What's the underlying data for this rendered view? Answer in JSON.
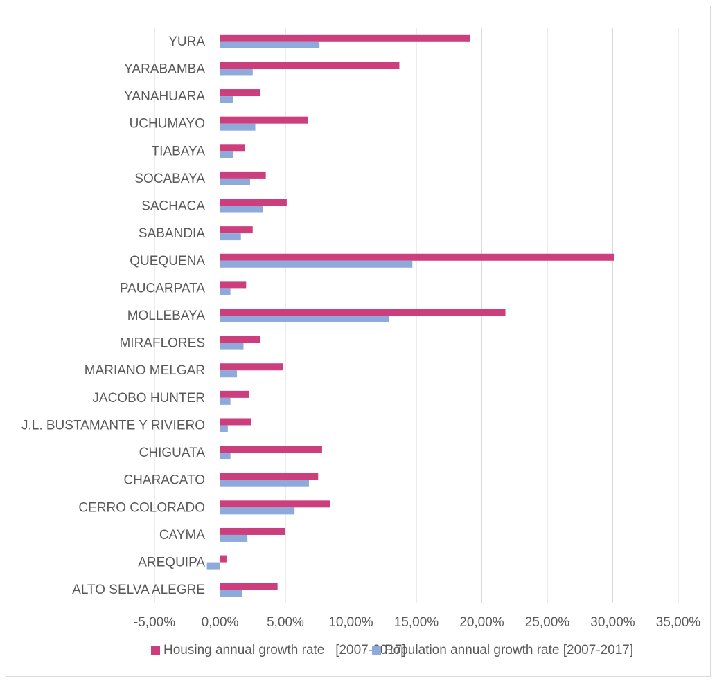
{
  "chart_data": {
    "type": "bar",
    "orientation": "horizontal",
    "categories": [
      "YURA",
      "YARABAMBA",
      "YANAHUARA",
      "UCHUMAYO",
      "TIABAYA",
      "SOCABAYA",
      "SACHACA",
      "SABANDIA",
      "QUEQUENA",
      "PAUCARPATA",
      "MOLLEBAYA",
      "MIRAFLORES",
      "MARIANO MELGAR",
      "JACOBO HUNTER",
      "J.L. BUSTAMANTE Y RIVIERO",
      "CHIGUATA",
      "CHARACATO",
      "CERRO COLORADO",
      "CAYMA",
      "AREQUIPA",
      "ALTO SELVA ALEGRE"
    ],
    "series": [
      {
        "name": "Housing annual growth rate   [2007-2017]",
        "color": "#cc3f7c",
        "values": [
          19.1,
          13.7,
          3.1,
          6.7,
          1.9,
          3.5,
          5.1,
          2.5,
          30.1,
          2.0,
          21.8,
          3.1,
          4.8,
          2.2,
          2.4,
          7.8,
          7.5,
          8.4,
          5.0,
          0.5,
          4.4
        ]
      },
      {
        "name": "Population annual growth rate [2007-2017]",
        "color": "#8eaadb",
        "values": [
          7.6,
          2.5,
          1.0,
          2.7,
          1.0,
          2.3,
          3.3,
          1.6,
          14.7,
          0.8,
          12.9,
          1.8,
          1.3,
          0.8,
          0.6,
          0.8,
          6.8,
          5.7,
          2.1,
          -1.0,
          1.7
        ]
      }
    ],
    "xlim": [
      -5,
      35
    ],
    "xticks": [
      -5,
      0,
      5,
      10,
      15,
      20,
      25,
      30,
      35
    ],
    "xtick_labels": [
      "-5,00%",
      "0,00%",
      "5,00%",
      "10,00%",
      "15,00%",
      "20,00%",
      "25,00%",
      "30,00%",
      "35,00%"
    ],
    "title": "",
    "xlabel": "",
    "ylabel": "",
    "grid": "vertical",
    "legend": "bottom"
  }
}
